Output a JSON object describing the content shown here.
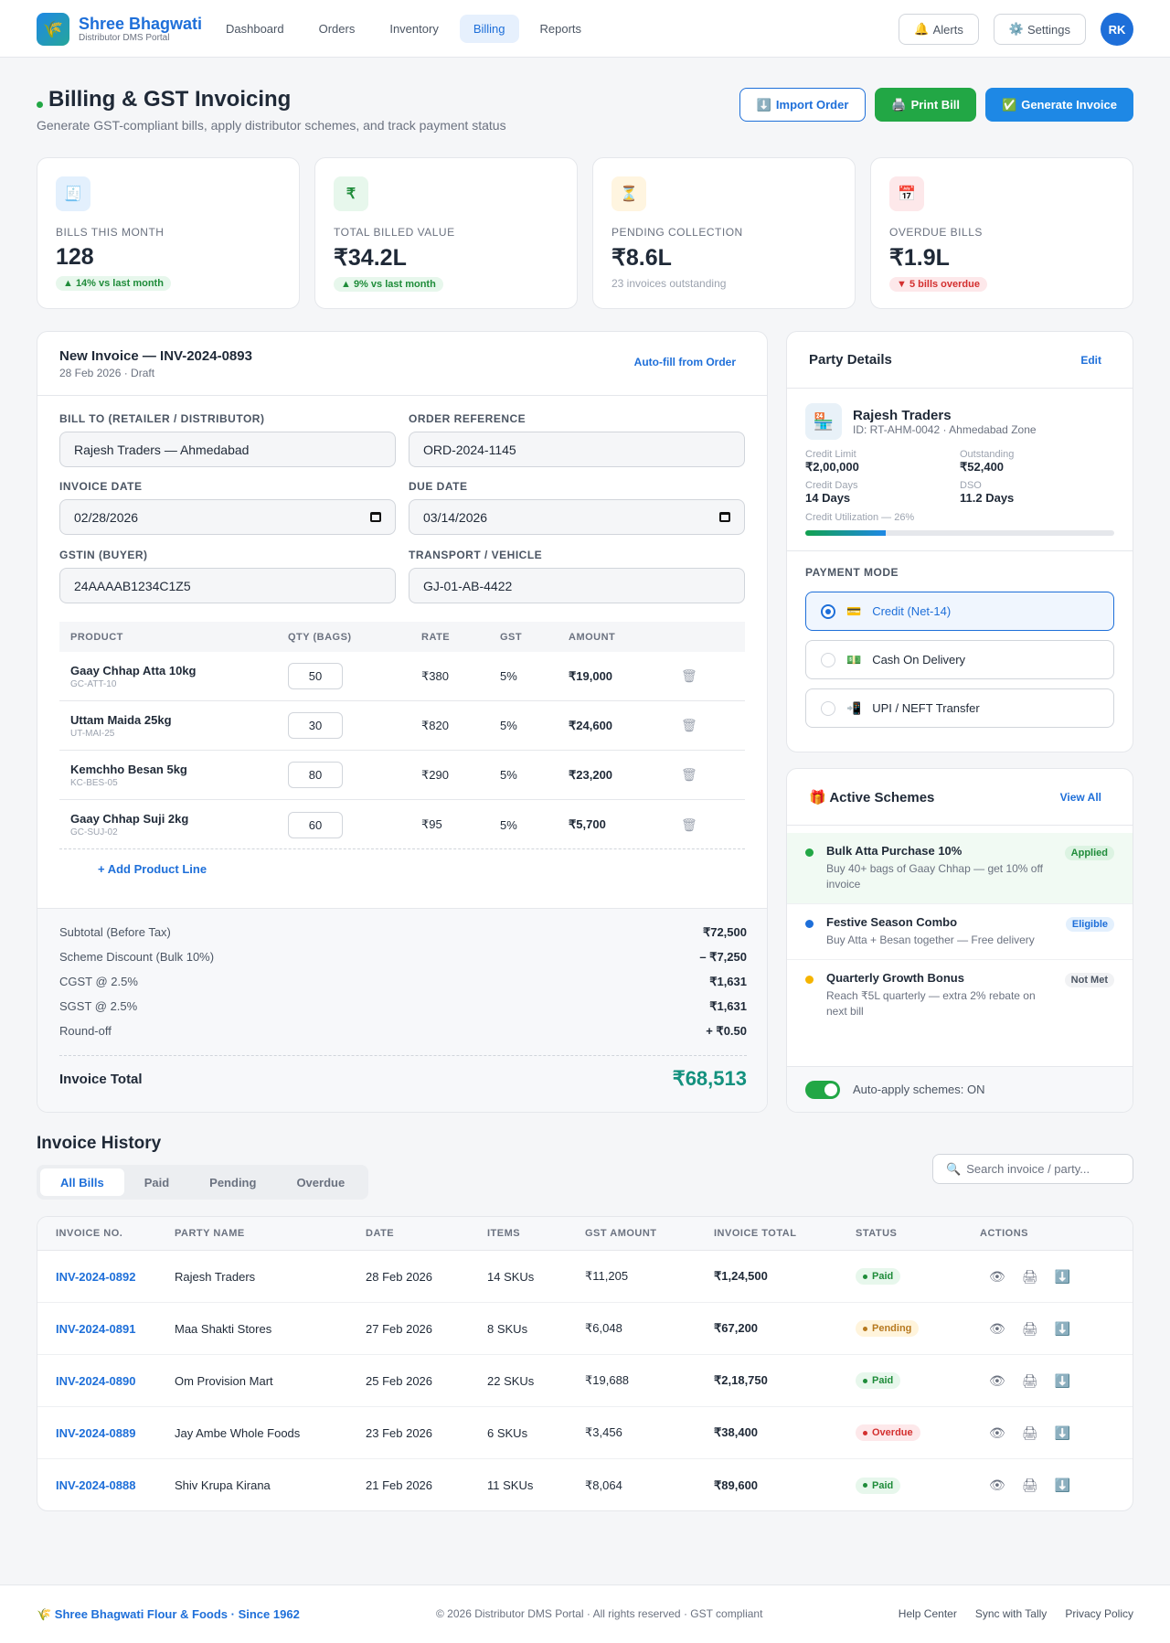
{
  "header": {
    "brand_name": "Shree Bhagwati",
    "brand_sub": "Distributor DMS Portal",
    "logo_icon": "wheat-icon",
    "nav": [
      "Dashboard",
      "Orders",
      "Inventory",
      "Billing",
      "Reports"
    ],
    "active_nav": "Billing",
    "alerts_label": "Alerts",
    "alerts_icon": "🔔",
    "settings_label": "Settings",
    "settings_icon": "⚙️",
    "avatar": "RK"
  },
  "page": {
    "title": "Billing & GST Invoicing",
    "subtitle": "Generate GST-compliant bills, apply distributor schemes, and track payment status",
    "import_label": "Import Order",
    "import_icon": "⬇️",
    "print_label": "Print Bill",
    "print_icon": "🖨️",
    "generate_label": "Generate Invoice",
    "generate_icon": "✅"
  },
  "stats": [
    {
      "icon": "🧾",
      "label": "BILLS THIS MONTH",
      "value": "128",
      "badge": "▲ 14% vs last month",
      "trend": "up",
      "icon_bg": "#e3f0fd"
    },
    {
      "icon": "₹",
      "label": "TOTAL BILLED VALUE",
      "value": "₹34.2L",
      "badge": "▲ 9% vs last month",
      "trend": "up",
      "icon_bg": "#e7f7ec"
    },
    {
      "icon": "⏳",
      "label": "PENDING COLLECTION",
      "value": "₹8.6L",
      "note": "23 invoices outstanding",
      "icon_bg": "#fff5e0"
    },
    {
      "icon": "📅",
      "label": "OVERDUE BILLS",
      "value": "₹1.9L",
      "badge": "▼ 5 bills overdue",
      "trend": "down",
      "icon_bg": "#fde8ea"
    }
  ],
  "invoice": {
    "title": "New Invoice — INV-2024-0893",
    "meta": "28 Feb 2026 · Draft",
    "autofill_label": "Auto-fill from Order",
    "fields": {
      "bill_to": {
        "label": "BILL TO (RETAILER / DISTRIBUTOR)",
        "value": "Rajesh Traders — Ahmedabad"
      },
      "order_ref": {
        "label": "ORDER REFERENCE",
        "value": "ORD-2024-1145"
      },
      "invoice_date": {
        "label": "INVOICE DATE",
        "value": "02/28/2026"
      },
      "due_date": {
        "label": "DUE DATE",
        "value": "03/14/2026"
      },
      "gstin": {
        "label": "GSTIN (BUYER)",
        "value": "24AAAAB1234C1Z5"
      },
      "transport": {
        "label": "TRANSPORT / VEHICLE",
        "value": "GJ-01-AB-4422"
      }
    },
    "table_headers": [
      "PRODUCT",
      "QTY (BAGS)",
      "RATE",
      "GST",
      "AMOUNT"
    ],
    "lines": [
      {
        "name": "Gaay Chhap Atta 10kg",
        "sku": "GC-ATT-10",
        "qty": "50",
        "rate": "₹380",
        "gst": "5%",
        "amount": "₹19,000"
      },
      {
        "name": "Uttam Maida 25kg",
        "sku": "UT-MAI-25",
        "qty": "30",
        "rate": "₹820",
        "gst": "5%",
        "amount": "₹24,600"
      },
      {
        "name": "Kemchho Besan 5kg",
        "sku": "KC-BES-05",
        "qty": "80",
        "rate": "₹290",
        "gst": "5%",
        "amount": "₹23,200"
      },
      {
        "name": "Gaay Chhap Suji 2kg",
        "sku": "GC-SUJ-02",
        "qty": "60",
        "rate": "₹95",
        "gst": "5%",
        "amount": "₹5,700"
      }
    ],
    "add_line_label": "+ Add Product Line",
    "totals": [
      {
        "label": "Subtotal (Before Tax)",
        "value": "₹72,500"
      },
      {
        "label": "Scheme Discount (Bulk 10%)",
        "value": "– ₹7,250"
      },
      {
        "label": "CGST @ 2.5%",
        "value": "₹1,631"
      },
      {
        "label": "SGST @ 2.5%",
        "value": "₹1,631"
      },
      {
        "label": "Round-off",
        "value": "+ ₹0.50"
      }
    ],
    "total_label": "Invoice Total",
    "total_value": "₹68,513"
  },
  "party": {
    "title": "Party Details",
    "edit_label": "Edit",
    "icon": "🏪",
    "name": "Rajesh Traders",
    "id": "ID: RT-AHM-0042 · Ahmedabad Zone",
    "details": [
      {
        "key": "Credit Limit",
        "value": "₹2,00,000"
      },
      {
        "key": "Outstanding",
        "value": "₹52,400"
      },
      {
        "key": "Credit Days",
        "value": "14 Days"
      },
      {
        "key": "DSO",
        "value": "11.2 Days"
      }
    ],
    "utilization_label": "Credit Utilization — 26%",
    "utilization": 0.26,
    "payment_label": "PAYMENT MODE",
    "payment_options": [
      {
        "icon": "💳",
        "label": "Credit (Net-14)",
        "selected": true
      },
      {
        "icon": "💵",
        "label": "Cash On Delivery",
        "selected": false
      },
      {
        "icon": "📲",
        "label": "UPI / NEFT Transfer",
        "selected": false
      }
    ]
  },
  "schemes": {
    "title": "Active Schemes",
    "title_icon": "🎁",
    "view_all_label": "View All",
    "items": [
      {
        "name": "Bulk Atta Purchase 10%",
        "desc": "Buy 40+ bags of Gaay Chhap — get 10% off invoice",
        "tag": "Applied",
        "dot": "#22a745",
        "tag_bg": "#dcf3e2",
        "tag_color": "#1f8c3a"
      },
      {
        "name": "Festive Season Combo",
        "desc": "Buy Atta + Besan together — Free delivery",
        "tag": "Eligible",
        "dot": "#1e6fd9",
        "tag_bg": "#e3f0fd",
        "tag_color": "#1e6fd9"
      },
      {
        "name": "Quarterly Growth Bonus",
        "desc": "Reach ₹5L quarterly — extra 2% rebate on next bill",
        "tag": "Not Met",
        "dot": "#f5b400",
        "tag_bg": "#f1f2f4",
        "tag_color": "#4b5563"
      }
    ],
    "auto_apply_label": "Auto-apply schemes: ON"
  },
  "history": {
    "title": "Invoice History",
    "tabs": [
      "All Bills",
      "Paid",
      "Pending",
      "Overdue"
    ],
    "active_tab": "All Bills",
    "search_placeholder": "Search invoice / party...",
    "headers": [
      "INVOICE NO.",
      "PARTY NAME",
      "DATE",
      "ITEMS",
      "GST AMOUNT",
      "INVOICE TOTAL",
      "STATUS",
      "ACTIONS"
    ],
    "rows": [
      {
        "no": "INV-2024-0892",
        "party": "Rajesh Traders",
        "date": "28 Feb 2026",
        "items": "14 SKUs",
        "gst": "₹11,205",
        "total": "₹1,24,500",
        "status": "Paid"
      },
      {
        "no": "INV-2024-0891",
        "party": "Maa Shakti Stores",
        "date": "27 Feb 2026",
        "items": "8 SKUs",
        "gst": "₹6,048",
        "total": "₹67,200",
        "status": "Pending"
      },
      {
        "no": "INV-2024-0890",
        "party": "Om Provision Mart",
        "date": "25 Feb 2026",
        "items": "22 SKUs",
        "gst": "₹19,688",
        "total": "₹2,18,750",
        "status": "Paid"
      },
      {
        "no": "INV-2024-0889",
        "party": "Jay Ambe Whole Foods",
        "date": "23 Feb 2026",
        "items": "6 SKUs",
        "gst": "₹3,456",
        "total": "₹38,400",
        "status": "Overdue"
      },
      {
        "no": "INV-2024-0888",
        "party": "Shiv Krupa Kirana",
        "date": "21 Feb 2026",
        "items": "11 SKUs",
        "gst": "₹8,064",
        "total": "₹89,600",
        "status": "Paid"
      }
    ],
    "status_colors": {
      "Paid": {
        "bg": "#e7f7ec",
        "fg": "#1f8c3a"
      },
      "Pending": {
        "bg": "#fff4dc",
        "fg": "#b7791f"
      },
      "Overdue": {
        "bg": "#fde8ea",
        "fg": "#d32f2f"
      }
    }
  },
  "footer": {
    "brand": "🌾 Shree Bhagwati Flour & Foods · Since 1962",
    "copyright": "© 2026 Distributor DMS Portal · All rights reserved · GST compliant",
    "links": [
      "Help Center",
      "Sync with Tally",
      "Privacy Policy"
    ]
  }
}
